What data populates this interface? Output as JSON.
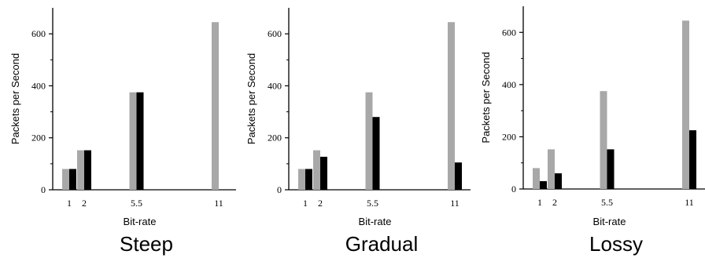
{
  "chart_data": [
    {
      "type": "bar",
      "title": "Steep",
      "xlabel": "Bit-rate",
      "ylabel": "Packets per Second",
      "x": [
        1,
        2,
        5.5,
        11
      ],
      "xtick_labels": [
        "1",
        "2",
        "5.5",
        "11"
      ],
      "yticks": [
        0,
        200,
        400,
        600
      ],
      "ylim": [
        0,
        700
      ],
      "series": [
        {
          "color": "#a8a8a8",
          "values": [
            80,
            152,
            375,
            645
          ]
        },
        {
          "color": "#000000",
          "values": [
            80,
            152,
            375,
            0
          ]
        }
      ]
    },
    {
      "type": "bar",
      "title": "Gradual",
      "xlabel": "Bit-rate",
      "ylabel": "Packets per Second",
      "x": [
        1,
        2,
        5.5,
        11
      ],
      "xtick_labels": [
        "1",
        "2",
        "5.5",
        "11"
      ],
      "yticks": [
        0,
        200,
        400,
        600
      ],
      "ylim": [
        0,
        700
      ],
      "series": [
        {
          "color": "#a8a8a8",
          "values": [
            80,
            152,
            375,
            645
          ]
        },
        {
          "color": "#000000",
          "values": [
            80,
            127,
            280,
            105
          ]
        }
      ]
    },
    {
      "type": "bar",
      "title": "Lossy",
      "xlabel": "Bit-rate",
      "ylabel": "Packets per Second",
      "x": [
        1,
        2,
        5.5,
        11
      ],
      "xtick_labels": [
        "1",
        "2",
        "5.5",
        "11"
      ],
      "yticks": [
        0,
        200,
        400,
        600
      ],
      "ylim": [
        0,
        700
      ],
      "series": [
        {
          "color": "#a8a8a8",
          "values": [
            80,
            152,
            375,
            645
          ]
        },
        {
          "color": "#000000",
          "values": [
            30,
            60,
            152,
            225
          ]
        }
      ]
    }
  ]
}
